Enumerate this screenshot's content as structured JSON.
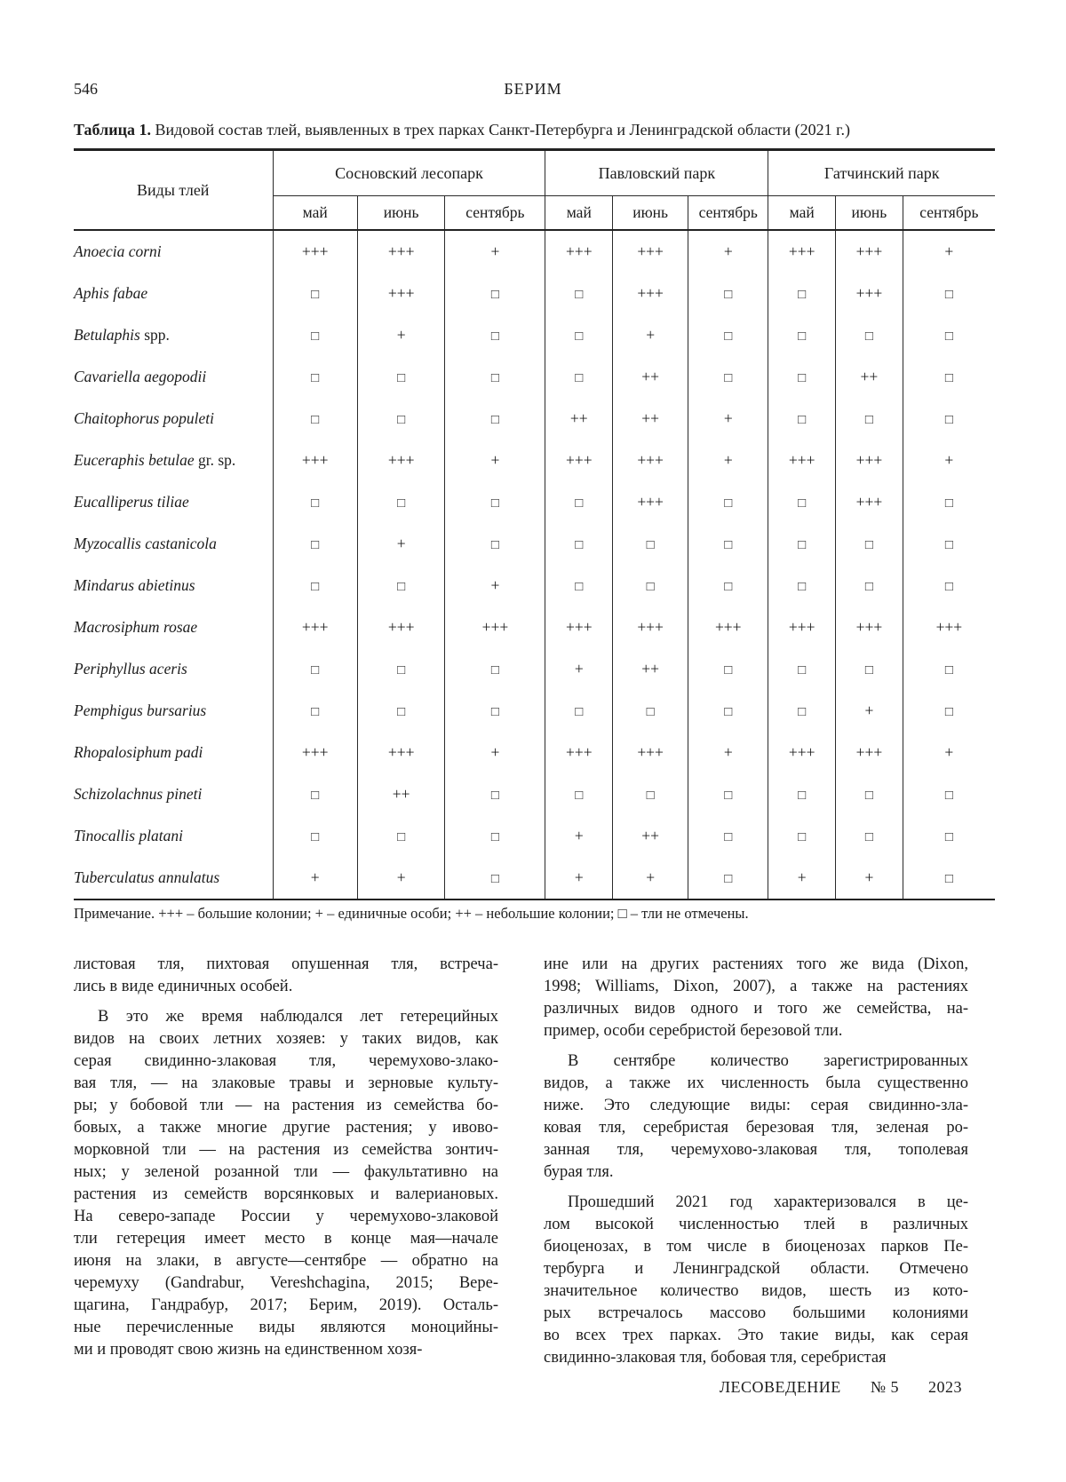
{
  "page": {
    "number": "546",
    "running_head": "БЕРИМ",
    "footer": {
      "journal": "ЛЕСОВЕДЕНИЕ",
      "issue": "№ 5",
      "year": "2023"
    }
  },
  "table": {
    "caption_label": "Таблица 1.",
    "caption_text": " Видовой состав тлей, выявленных в трех парках Санкт-Петербурга и Ленинградской области (2021 г.)",
    "species_header": "Виды тлей",
    "parks": [
      "Сосновский лесопарк",
      "Павловский парк",
      "Гатчинский парк"
    ],
    "months": [
      "май",
      "июнь",
      "сентябрь"
    ],
    "rows": [
      {
        "italic": "Anoecia corni",
        "roman": "",
        "values": [
          "+++",
          "+++",
          "+",
          "+++",
          "+++",
          "+",
          "+++",
          "+++",
          "+"
        ]
      },
      {
        "italic": "Aphis fabae",
        "roman": "",
        "values": [
          "□",
          "+++",
          "□",
          "□",
          "+++",
          "□",
          "□",
          "+++",
          "□"
        ]
      },
      {
        "italic": "Betulaphis",
        "roman": " spp.",
        "values": [
          "□",
          "+",
          "□",
          "□",
          "+",
          "□",
          "□",
          "□",
          "□"
        ]
      },
      {
        "italic": "Cavariella aegopodii",
        "roman": "",
        "values": [
          "□",
          "□",
          "□",
          "□",
          "++",
          "□",
          "□",
          "++",
          "□"
        ]
      },
      {
        "italic": "Chaitophorus populeti",
        "roman": "",
        "values": [
          "□",
          "□",
          "□",
          "++",
          "++",
          "+",
          "□",
          "□",
          "□"
        ]
      },
      {
        "italic": "Euceraphis betulae",
        "roman": " gr. sp.",
        "values": [
          "+++",
          "+++",
          "+",
          "+++",
          "+++",
          "+",
          "+++",
          "+++",
          "+"
        ]
      },
      {
        "italic": "Eucalliperus tiliae",
        "roman": "",
        "values": [
          "□",
          "□",
          "□",
          "□",
          "+++",
          "□",
          "□",
          "+++",
          "□"
        ]
      },
      {
        "italic": "Myzocallis castanicola",
        "roman": "",
        "values": [
          "□",
          "+",
          "□",
          "□",
          "□",
          "□",
          "□",
          "□",
          "□"
        ]
      },
      {
        "italic": "Mindarus abietinus",
        "roman": "",
        "values": [
          "□",
          "□",
          "+",
          "□",
          "□",
          "□",
          "□",
          "□",
          "□"
        ]
      },
      {
        "italic": "Macrosiphum rosae",
        "roman": "",
        "values": [
          "+++",
          "+++",
          "+++",
          "+++",
          "+++",
          "+++",
          "+++",
          "+++",
          "+++"
        ]
      },
      {
        "italic": "Periphyllus aceris",
        "roman": "",
        "values": [
          "□",
          "□",
          "□",
          "+",
          "++",
          "□",
          "□",
          "□",
          "□"
        ]
      },
      {
        "italic": "Pemphigus bursarius",
        "roman": "",
        "values": [
          "□",
          "□",
          "□",
          "□",
          "□",
          "□",
          "□",
          "+",
          "□"
        ]
      },
      {
        "italic": "Rhopalosiphum padi",
        "roman": "",
        "values": [
          "+++",
          "+++",
          "+",
          "+++",
          "+++",
          "+",
          "+++",
          "+++",
          "+"
        ]
      },
      {
        "italic": "Schizolachnus pineti",
        "roman": "",
        "values": [
          "□",
          "++",
          "□",
          "□",
          "□",
          "□",
          "□",
          "□",
          "□"
        ]
      },
      {
        "italic": "Tinocallis platani",
        "roman": "",
        "values": [
          "□",
          "□",
          "□",
          "+",
          "++",
          "□",
          "□",
          "□",
          "□"
        ]
      },
      {
        "italic": "Tuberculatus annulatus",
        "roman": "",
        "values": [
          "+",
          "+",
          "□",
          "+",
          "+",
          "□",
          "+",
          "+",
          "□"
        ]
      }
    ],
    "note": "Примечание. +++ – большие колонии; + – единичные особи; ++ – небольшие колонии; □ – тли не отмечены."
  },
  "body": {
    "left_column": [
      {
        "indent": false,
        "lines": [
          "листовая тля, пихтовая опушенная тля, встреча-",
          "лись в виде единичных особей."
        ]
      },
      {
        "indent": true,
        "lines": [
          "В это же время наблюдался лет гетерецийных",
          "видов на своих летних хозяев: у таких видов, как",
          "серая свидинно-злаковая тля, черемухово-злако-",
          "вая тля, — на злаковые травы и зерновые культу-",
          "ры; у бобовой тли — на растения из семейства бо-",
          "бовых, а также многие другие растения; у ивово-",
          "морковной тли — на растения из семейства зонтич-",
          "ных; у зеленой розанной тли — факультативно на",
          "растения из семейств ворсянковых и валериановых.",
          "На северо-западе России у черемухово-злаковой",
          "тли гетереция имеет место в конце мая—начале",
          "июня на злаки, в августе—сентябре — обратно на",
          "черемуху (Gandrabur, Vereshchagina, 2015; Вере-",
          "щагина, Гандрабур, 2017; Берим, 2019). Осталь-",
          "ные перечисленные виды являются моноцийны-",
          "ми и проводят свою жизнь на единственном хозя-"
        ]
      }
    ],
    "right_column": [
      {
        "indent": false,
        "lines": [
          "ине или на других растениях того же вида (Dixon,",
          "1998; Williams, Dixon, 2007), а также на растениях",
          "различных видов одного и того же семейства, на-",
          "пример, особи серебристой березовой тли."
        ]
      },
      {
        "indent": true,
        "lines": [
          "В сентябре количество зарегистрированных",
          "видов, а также их численность была существенно",
          "ниже. Это следующие виды: серая свидинно-зла-",
          "ковая тля, серебристая березовая тля, зеленая ро-",
          "занная тля, черемухово-злаковая тля, тополевая",
          "бурая тля."
        ]
      },
      {
        "indent": true,
        "lines": [
          "Прошедший 2021 год характеризовался в це-",
          "лом высокой численностью тлей в различных",
          "биоценозах, в том числе в биоценозах парков Пе-",
          "тербурга и Ленинградской области. Отмечено",
          "значительное количество видов, шесть из кото-",
          "рых встречалось массово большими колониями",
          "во всех трех парках. Это такие виды, как серая",
          "свидинно-злаковая тля, бобовая тля, серебристая"
        ]
      }
    ]
  }
}
